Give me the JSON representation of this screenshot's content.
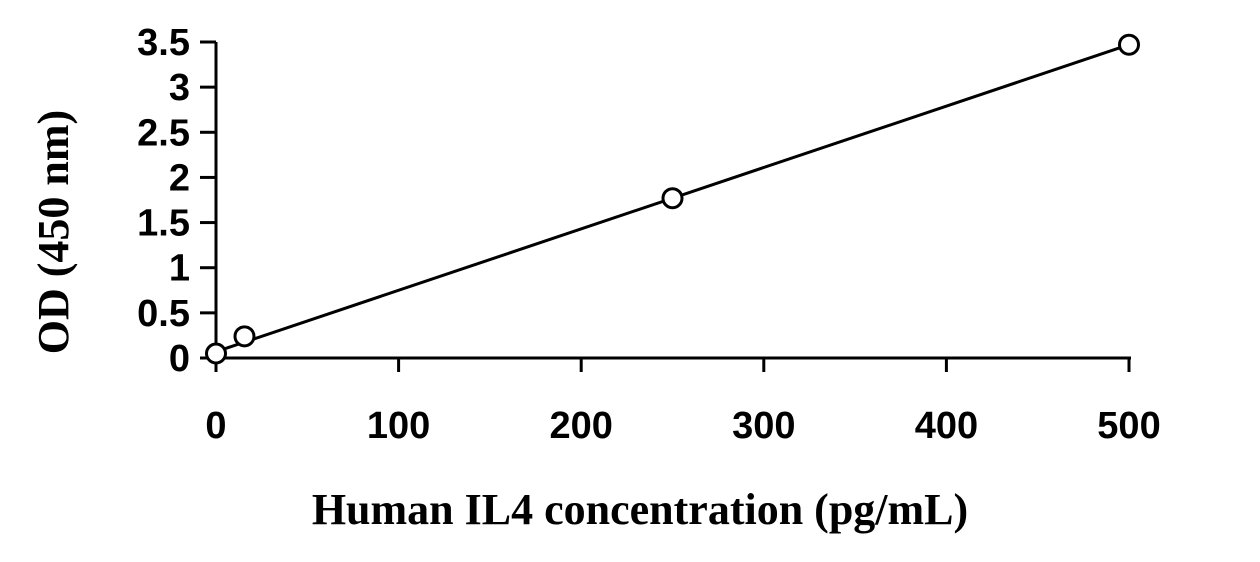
{
  "chart_data": {
    "type": "scatter",
    "title": "",
    "xlabel": "Human IL4 concentration (pg/mL)",
    "ylabel": "OD (450 nm)",
    "xlim": [
      0,
      500
    ],
    "ylim": [
      0,
      3.5
    ],
    "x_ticks": [
      "0",
      "100",
      "200",
      "300",
      "400",
      "500"
    ],
    "y_ticks": [
      "0",
      "0.5",
      "1",
      "1.5",
      "2",
      "2.5",
      "3",
      "3.5"
    ],
    "series": [
      {
        "x": [
          0,
          15.6,
          250,
          500
        ],
        "y": [
          0.05,
          0.24,
          1.77,
          3.47
        ],
        "marker": "open-circle",
        "color": "#000000"
      }
    ],
    "trendline": {
      "type": "linear",
      "x": [
        0,
        500
      ],
      "y": [
        0.07,
        3.47
      ]
    },
    "grid": false,
    "legend": "none"
  }
}
